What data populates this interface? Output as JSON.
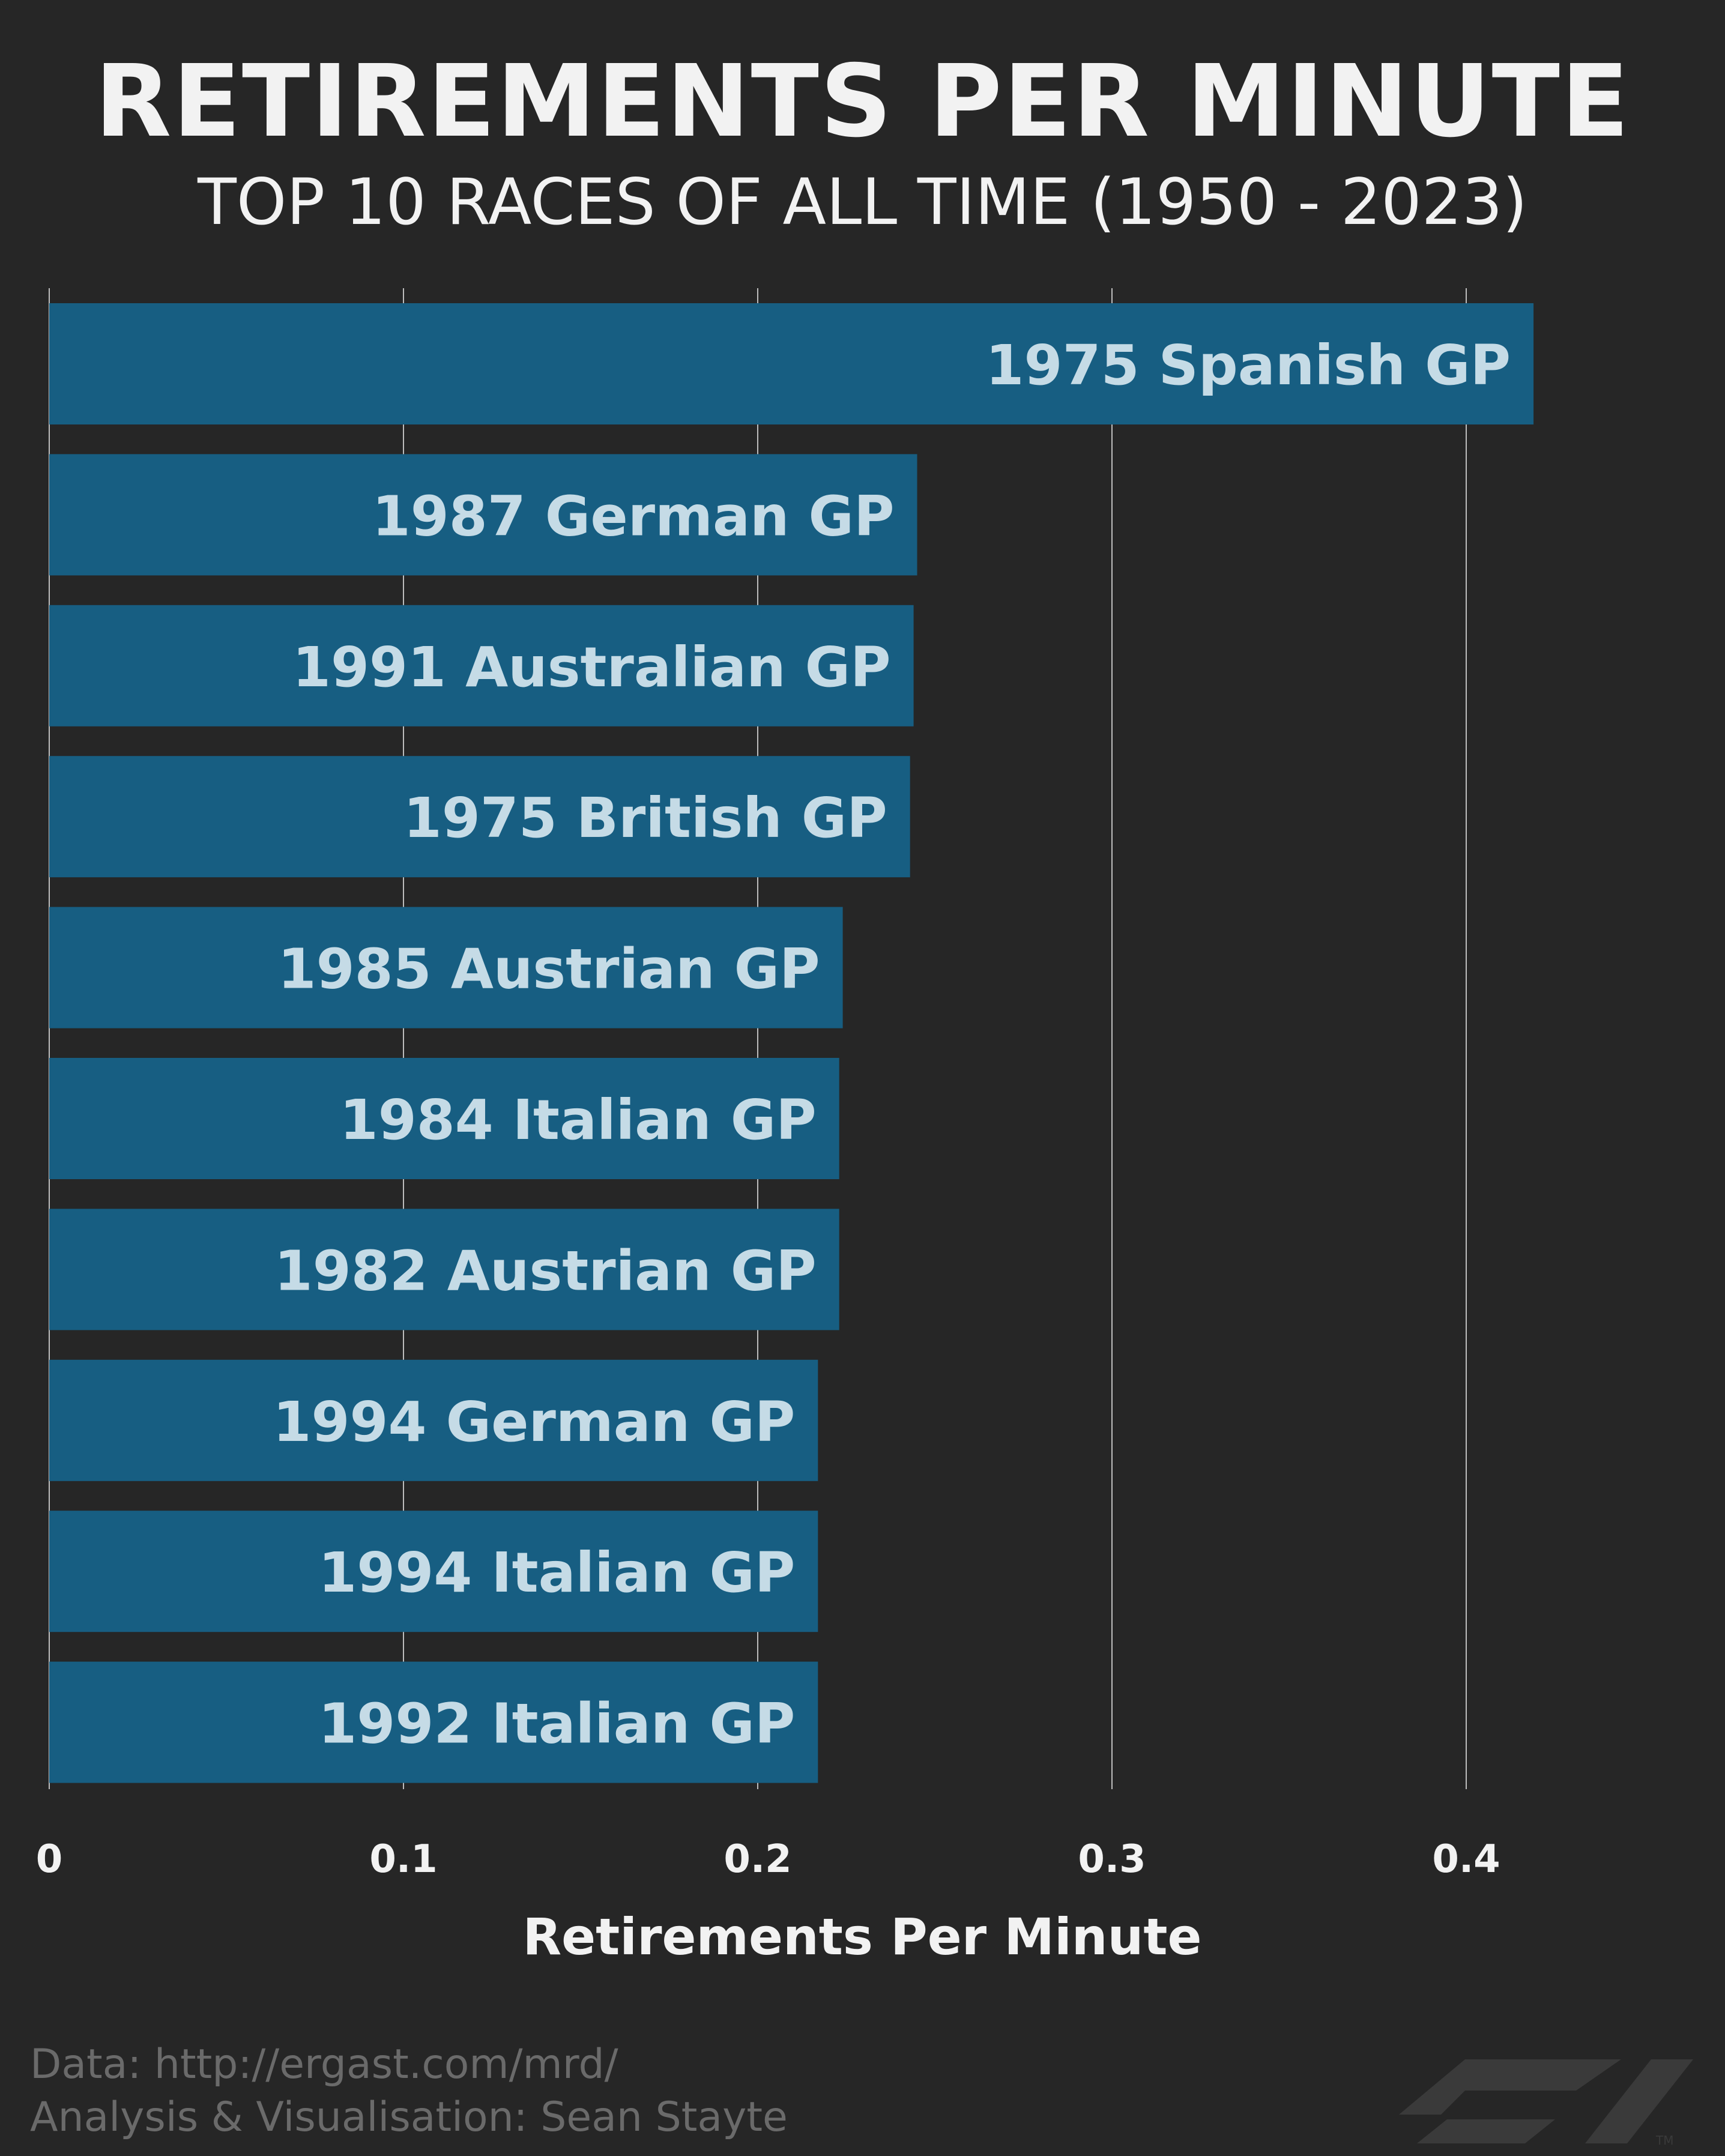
{
  "header": {
    "title": "RETIREMENTS PER MINUTE",
    "subtitle": "TOP 10 RACES OF ALL TIME (1950 - 2023)"
  },
  "footer": {
    "data_source": "Data: http://ergast.com/mrd/",
    "credit": "Analysis & Visualisation: Sean Stayte"
  },
  "logo": {
    "icon": "f1-logo-icon",
    "trademark": "TM"
  },
  "colors": {
    "background": "#262626",
    "bar": "#175e82",
    "bar_label": "#c5dbe6",
    "gridline": "#bdbdbd",
    "text": "#f2f2f2",
    "footer_text": "#6a6a6a",
    "logo": "#3a3a3a"
  },
  "chart_data": {
    "type": "bar",
    "orientation": "horizontal",
    "categories": [
      "1975 Spanish GP",
      "1987 German GP",
      "1991 Australian GP",
      "1975 British GP",
      "1985 Austrian GP",
      "1984 Italian GP",
      "1982 Austrian GP",
      "1994 German GP",
      "1994 Italian GP",
      "1992 Italian GP"
    ],
    "values": [
      0.419,
      0.245,
      0.244,
      0.243,
      0.224,
      0.223,
      0.223,
      0.217,
      0.217,
      0.217
    ],
    "xlabel": "Retirements Per Minute",
    "ylabel": "",
    "xlim": [
      0,
      0.46
    ],
    "xticks": [
      0,
      0.1,
      0.2,
      0.3,
      0.4
    ],
    "xtick_labels": [
      "0",
      "0.1",
      "0.2",
      "0.3",
      "0.4"
    ],
    "grid": "vertical",
    "labels_inside_bars": true
  }
}
